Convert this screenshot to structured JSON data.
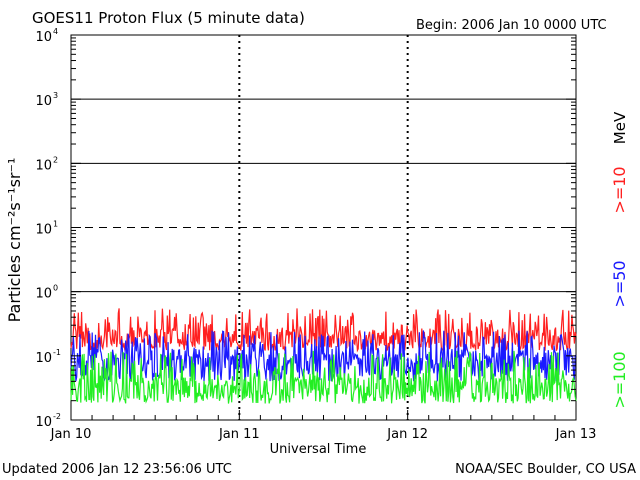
{
  "chart_data": {
    "type": "line",
    "title": "GOES11 Proton Flux (5 minute data)",
    "begin_label": "Begin: 2006 Jan 10 0000 UTC",
    "xlabel": "Universal Time",
    "ylabel": "Particles cm⁻²s⁻¹sr⁻¹",
    "y_scale": "log",
    "ylim": [
      0.01,
      10000
    ],
    "y_ticks": [
      {
        "exp": "-2",
        "value": 0.01
      },
      {
        "exp": "-1",
        "value": 0.1
      },
      {
        "exp": "0",
        "value": 1
      },
      {
        "exp": "1",
        "value": 10
      },
      {
        "exp": "2",
        "value": 100
      },
      {
        "exp": "3",
        "value": 1000
      },
      {
        "exp": "4",
        "value": 10000
      }
    ],
    "x_ticks": [
      {
        "label": "Jan 10",
        "day": 0
      },
      {
        "label": "Jan 11",
        "day": 1
      },
      {
        "label": "Jan 12",
        "day": 2
      },
      {
        "label": "Jan 13",
        "day": 3
      }
    ],
    "xlim": [
      "2006-01-10",
      "2006-01-13"
    ],
    "grid": "horizontal lines at 10^0, 10^2, 10^3 (solid) and 10^1 (dashed); vertical dashed day markers",
    "energy_unit": "MeV",
    "series": [
      {
        "name": ">=10",
        "color": "#ff2020",
        "mean": 0.2,
        "min": 0.12,
        "max": 0.55
      },
      {
        "name": ">=50",
        "color": "#1a1aff",
        "mean": 0.085,
        "min": 0.04,
        "max": 0.25
      },
      {
        "name": ">=100",
        "color": "#22ee22",
        "mean": 0.035,
        "min": 0.018,
        "max": 0.12
      }
    ]
  },
  "footer": {
    "updated": "Updated 2006 Jan 12 23:56:06 UTC",
    "credit": "NOAA/SEC Boulder, CO USA"
  }
}
